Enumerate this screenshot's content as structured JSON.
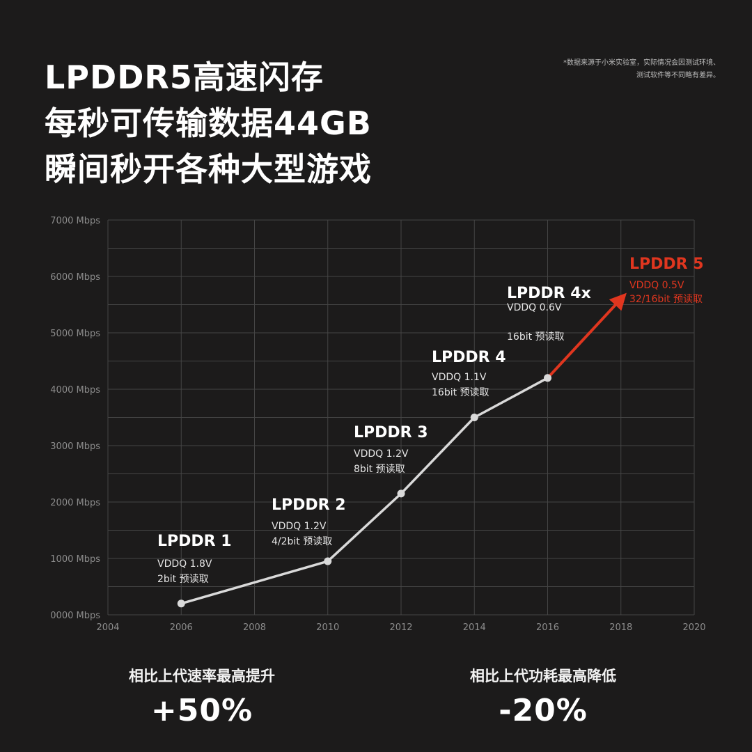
{
  "headline": [
    "LPDDR5高速闪存",
    "每秒可传输数据44GB",
    "瞬间秒开各种大型游戏"
  ],
  "footnote": [
    "*数据来源于小米实验室，实际情况会因测试环境、",
    "测试软件等不同略有差异。"
  ],
  "chart_data": {
    "type": "line",
    "xlim": [
      2004,
      2020
    ],
    "ylim": [
      0,
      7000
    ],
    "x_ticks": [
      "2004",
      "2006",
      "2008",
      "2010",
      "2012",
      "2014",
      "2016",
      "2018",
      "2020"
    ],
    "y_ticks": [
      "0000 Mbps",
      "1000 Mbps",
      "2000 Mbps",
      "3000 Mbps",
      "4000 Mbps",
      "5000 Mbps",
      "6000 Mbps",
      "7000 Mbps"
    ],
    "grid": true,
    "series": [
      {
        "points": [
          {
            "x": 2006,
            "y": 200
          },
          {
            "x": 2010,
            "y": 950
          },
          {
            "x": 2012,
            "y": 2150
          },
          {
            "x": 2014,
            "y": 3500
          },
          {
            "x": 2016,
            "y": 4200
          }
        ],
        "color": "#d9d9d9"
      },
      {
        "points": [
          {
            "x": 2016,
            "y": 4200
          },
          {
            "x": 2018,
            "y": 5600
          }
        ],
        "color": "#e0361f",
        "arrow": true
      }
    ],
    "annotations": [
      {
        "title": "LPDDR 1",
        "lines": [
          "VDDQ 1.8V",
          "2bit 预读取"
        ]
      },
      {
        "title": "LPDDR 2",
        "lines": [
          "VDDQ 1.2V",
          "4/2bit 预读取"
        ]
      },
      {
        "title": "LPDDR 3",
        "lines": [
          "VDDQ 1.2V",
          "8bit 预读取"
        ]
      },
      {
        "title": "LPDDR 4",
        "lines": [
          "VDDQ 1.1V",
          "16bit 预读取"
        ]
      },
      {
        "title": "LPDDR 4x",
        "lines": [
          "VDDQ 0.6V",
          "16bit 预读取"
        ]
      },
      {
        "title": "LPDDR 5",
        "lines": [
          "VDDQ 0.5V",
          "32/16bit 预读取"
        ],
        "color": "#e0361f"
      }
    ]
  },
  "stats": [
    {
      "label": "相比上代速率最高提升",
      "value": "+50%"
    },
    {
      "label": "相比上代功耗最高降低",
      "value": "-20%"
    }
  ]
}
